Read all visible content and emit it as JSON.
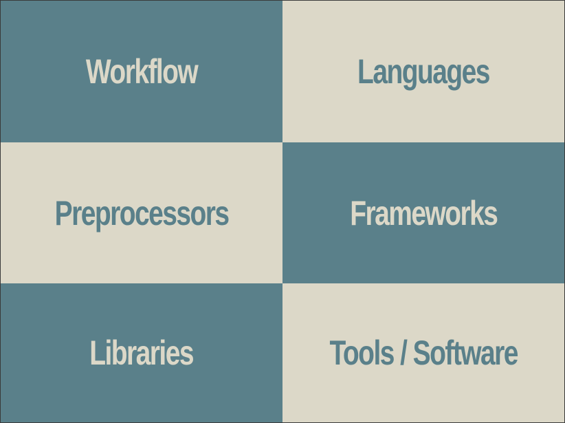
{
  "grid": {
    "tiles": [
      {
        "label": "Workflow"
      },
      {
        "label": "Languages"
      },
      {
        "label": "Preprocessors"
      },
      {
        "label": "Frameworks"
      },
      {
        "label": "Libraries"
      },
      {
        "label": "Tools / Software"
      }
    ]
  },
  "colors": {
    "teal": "#5a808a",
    "cream": "#dcd8c8",
    "border": "#3a3a3a"
  }
}
